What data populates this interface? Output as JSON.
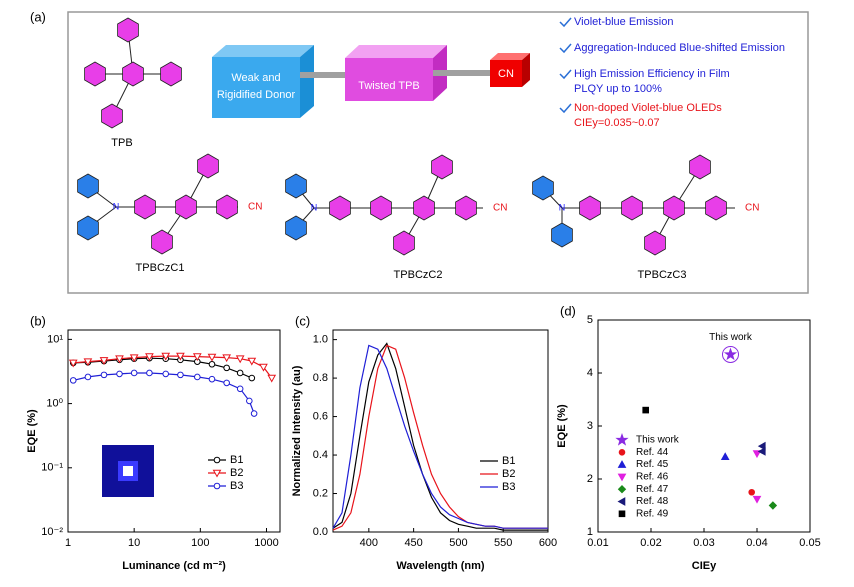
{
  "panel_a": {
    "label": "(a)",
    "tpb": "TPB",
    "donor": [
      "Weak and",
      "Rigidified Donor"
    ],
    "core": "Twisted TPB",
    "acceptor": "CN",
    "features": [
      {
        "lines": [
          "Violet-blue Emission"
        ],
        "color": "#1f1fd6"
      },
      {
        "lines": [
          "Aggregation-Induced Blue-shifted Emission"
        ],
        "color": "#1f1fd6"
      },
      {
        "lines": [
          "High Emission Efficiency in Film",
          "PLQY up to 100%"
        ],
        "color": "#1f1fd6"
      },
      {
        "lines": [
          "Non-doped Violet-blue OLEDs",
          "CIEy=0.035~0.07"
        ],
        "color": "#e8141b"
      }
    ],
    "molecules": [
      {
        "name": "TPBCzC1",
        "atom": "N",
        "group": "CN"
      },
      {
        "name": "TPBCzC2",
        "atom": "N",
        "group": "CN"
      },
      {
        "name": "TPBCzC3",
        "atom": "N",
        "group": "CN"
      }
    ]
  },
  "chart_data": [
    {
      "type": "line",
      "panel_label": "(b)",
      "xlabel": "Luminance (cd m⁻²)",
      "ylabel": "EQE (%)",
      "xlog": true,
      "ylog": true,
      "xlim": [
        1,
        1600
      ],
      "ylim": [
        0.01,
        14
      ],
      "xticks": [
        1,
        10,
        100,
        1000
      ],
      "yticks": [
        {
          "value": 0.01,
          "label": "10⁻²"
        },
        {
          "value": 0.1,
          "label": "10⁻¹"
        },
        {
          "value": 1,
          "label": "10⁰"
        },
        {
          "value": 10,
          "label": "10¹"
        }
      ],
      "series": [
        {
          "name": "B1",
          "color": "#000000",
          "marker": "circle",
          "x": [
            1.2,
            2,
            3.5,
            6,
            10,
            17,
            30,
            50,
            90,
            150,
            250,
            400,
            600
          ],
          "values": [
            4.3,
            4.4,
            4.6,
            4.8,
            5.0,
            5.1,
            5.0,
            4.8,
            4.5,
            4.1,
            3.6,
            3.0,
            2.5
          ]
        },
        {
          "name": "B2",
          "color": "#e8141b",
          "marker": "down",
          "x": [
            1.2,
            2,
            3.5,
            6,
            10,
            17,
            30,
            50,
            90,
            150,
            250,
            400,
            600,
            900,
            1200
          ],
          "values": [
            4.3,
            4.5,
            4.7,
            5.0,
            5.2,
            5.4,
            5.5,
            5.5,
            5.4,
            5.3,
            5.2,
            5.0,
            4.6,
            3.7,
            2.5
          ]
        },
        {
          "name": "B3",
          "color": "#1f1fd6",
          "marker": "circle",
          "x": [
            1.2,
            2,
            3.5,
            6,
            10,
            17,
            30,
            50,
            90,
            150,
            250,
            400,
            550,
            650
          ],
          "values": [
            2.3,
            2.6,
            2.8,
            2.9,
            3.0,
            3.0,
            2.9,
            2.8,
            2.6,
            2.4,
            2.1,
            1.7,
            1.1,
            0.7
          ]
        }
      ]
    },
    {
      "type": "line",
      "panel_label": "(c)",
      "xlabel": "Wavelength (nm)",
      "ylabel": "Normalized Intensity (au)",
      "xlim": [
        360,
        600
      ],
      "ylim": [
        0,
        1.05
      ],
      "xticks": [
        400,
        450,
        500,
        550,
        600
      ],
      "yticks": [
        {
          "value": 0,
          "label": "0.0"
        },
        0.2,
        0.4,
        0.6,
        0.8,
        {
          "value": 1,
          "label": "1.0"
        }
      ],
      "series": [
        {
          "name": "B1",
          "color": "#000000",
          "x": [
            360,
            370,
            380,
            390,
            400,
            410,
            420,
            430,
            440,
            450,
            460,
            470,
            480,
            490,
            500,
            510,
            520,
            530,
            540,
            550,
            560,
            570,
            580,
            590,
            600
          ],
          "values": [
            0.02,
            0.05,
            0.2,
            0.5,
            0.78,
            0.92,
            0.98,
            0.85,
            0.65,
            0.45,
            0.3,
            0.18,
            0.1,
            0.06,
            0.04,
            0.03,
            0.02,
            0.02,
            0.02,
            0.01,
            0.01,
            0.01,
            0.01,
            0.01,
            0.01
          ]
        },
        {
          "name": "B2",
          "color": "#e8141b",
          "x": [
            360,
            370,
            380,
            390,
            400,
            410,
            420,
            430,
            440,
            450,
            460,
            470,
            480,
            490,
            500,
            510,
            520,
            530,
            540,
            550,
            560,
            570,
            580,
            590,
            600
          ],
          "values": [
            0.01,
            0.03,
            0.1,
            0.3,
            0.6,
            0.85,
            0.97,
            0.95,
            0.8,
            0.62,
            0.45,
            0.3,
            0.2,
            0.13,
            0.08,
            0.05,
            0.04,
            0.03,
            0.03,
            0.02,
            0.02,
            0.02,
            0.02,
            0.02,
            0.02
          ]
        },
        {
          "name": "B3",
          "color": "#1f1fd6",
          "x": [
            360,
            370,
            380,
            390,
            400,
            410,
            420,
            430,
            440,
            450,
            460,
            470,
            480,
            490,
            500,
            510,
            520,
            530,
            540,
            550,
            560,
            570,
            580,
            590,
            600
          ],
          "values": [
            0.02,
            0.1,
            0.4,
            0.75,
            0.97,
            0.95,
            0.85,
            0.7,
            0.55,
            0.42,
            0.3,
            0.2,
            0.13,
            0.09,
            0.07,
            0.05,
            0.04,
            0.03,
            0.03,
            0.02,
            0.02,
            0.02,
            0.02,
            0.02,
            0.02
          ]
        }
      ]
    },
    {
      "type": "scatter",
      "panel_label": "(d)",
      "xlabel": "CIEy",
      "ylabel": "EQE (%)",
      "annotation": "This work",
      "xlim": [
        0.01,
        0.05
      ],
      "ylim": [
        1,
        5
      ],
      "xticks": [
        0.01,
        0.02,
        0.03,
        0.04,
        0.05
      ],
      "yticks": [
        1,
        2,
        3,
        4,
        5
      ],
      "series": [
        {
          "name": "This work",
          "color": "#8a2be2",
          "marker": "star",
          "x": [
            0.035
          ],
          "values": [
            4.35
          ]
        },
        {
          "name": "Ref. 44",
          "color": "#e8141b",
          "marker": "circle",
          "x": [
            0.039
          ],
          "values": [
            1.75
          ]
        },
        {
          "name": "Ref. 45",
          "color": "#1f1fd6",
          "marker": "up",
          "x": [
            0.034
          ],
          "values": [
            2.42
          ]
        },
        {
          "name": "Ref. 46",
          "color": "#e020e0",
          "marker": "down",
          "x": [
            0.04,
            0.04
          ],
          "values": [
            2.48,
            1.62
          ]
        },
        {
          "name": "Ref. 47",
          "color": "#1a8a1a",
          "marker": "diamond",
          "x": [
            0.043
          ],
          "values": [
            1.5
          ]
        },
        {
          "name": "Ref. 48",
          "color": "#1a1a7a",
          "marker": "left",
          "x": [
            0.041,
            0.041
          ],
          "values": [
            2.62,
            2.52
          ]
        },
        {
          "name": "Ref. 49",
          "color": "#000000",
          "marker": "square",
          "x": [
            0.019
          ],
          "values": [
            3.3
          ]
        }
      ]
    }
  ]
}
